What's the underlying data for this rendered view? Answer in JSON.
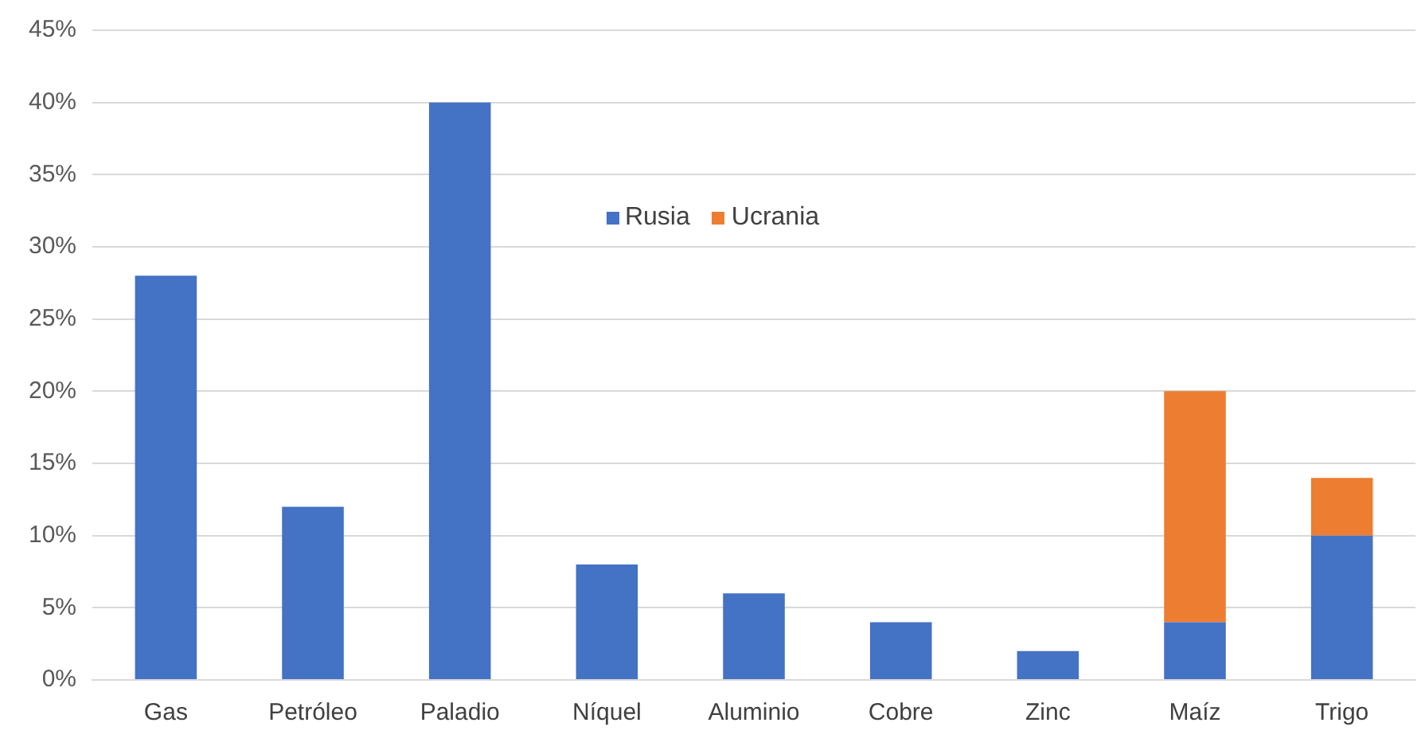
{
  "chart_data": {
    "type": "bar",
    "stacked": true,
    "categories": [
      "Gas",
      "Petróleo",
      "Paladio",
      "Níquel",
      "Aluminio",
      "Cobre",
      "Zinc",
      "Maíz",
      "Trigo"
    ],
    "series": [
      {
        "name": "Rusia",
        "color": "#4472c4",
        "values": [
          28,
          12,
          40,
          8,
          6,
          4,
          2,
          4,
          10
        ]
      },
      {
        "name": "Ucrania",
        "color": "#ed7d31",
        "values": [
          null,
          null,
          null,
          null,
          null,
          null,
          null,
          16,
          4
        ]
      }
    ],
    "ylim": [
      0,
      45
    ],
    "yticks": [
      {
        "value": 0,
        "label": "0%"
      },
      {
        "value": 5,
        "label": "5%"
      },
      {
        "value": 10,
        "label": "10%"
      },
      {
        "value": 15,
        "label": "15%"
      },
      {
        "value": 20,
        "label": "20%"
      },
      {
        "value": 25,
        "label": "25%"
      },
      {
        "value": 30,
        "label": "30%"
      },
      {
        "value": 35,
        "label": "35%"
      },
      {
        "value": 40,
        "label": "40%"
      },
      {
        "value": 45,
        "label": "45%"
      }
    ],
    "grid": "y",
    "legend": "top"
  }
}
